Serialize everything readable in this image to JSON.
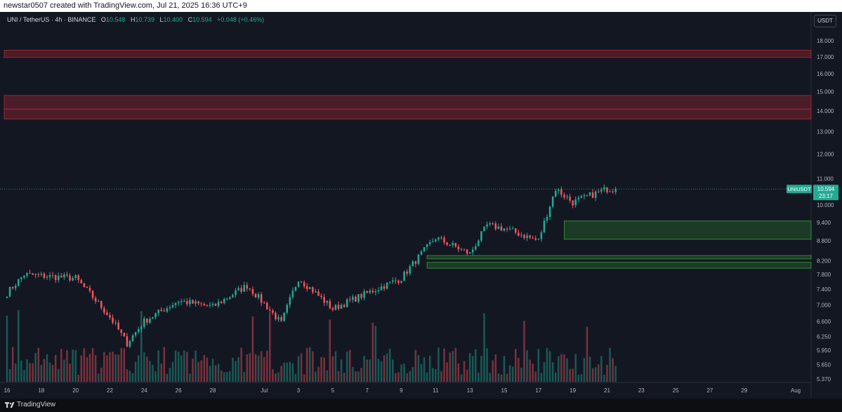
{
  "header": {
    "attribution": "newstar0507 created with TradingView.com, Jul 21, 2025 16:36 UTC+9"
  },
  "legend": {
    "symbol": "UNI / TetherUS · 4h · BINANCE",
    "o_label": "O",
    "o_value": "10.548",
    "h_label": "H",
    "h_value": "10.739",
    "l_label": "L",
    "l_value": "10.400",
    "c_label": "C",
    "c_value": "10.594",
    "change": "+0.048 (+0.46%)"
  },
  "currency_button": "USDT",
  "price_axis": {
    "ticks": [
      "18.000",
      "17.000",
      "16.000",
      "15.000",
      "14.000",
      "13.000",
      "12.000",
      "11.000",
      "10.000",
      "9.400",
      "8.800",
      "8.200",
      "7.800",
      "7.400",
      "7.000",
      "6.600",
      "6.250",
      "5.950",
      "5.650",
      "5.370"
    ]
  },
  "last_price": {
    "symbol_label": "UNIUSDT",
    "price": "10.594",
    "countdown": "23:17"
  },
  "time_axis": {
    "ticks": [
      "16",
      "18",
      "20",
      "22",
      "24",
      "26",
      "28",
      "Jul",
      "3",
      "5",
      "7",
      "9",
      "11",
      "13",
      "15",
      "17",
      "19",
      "21",
      "23",
      "25",
      "27",
      "29",
      "Aug"
    ]
  },
  "footer": {
    "brand": "TradingView",
    "logo_text": "17"
  },
  "colors": {
    "background": "#131722",
    "up": "#22ab94",
    "down": "#f7525f",
    "resistance_zone": "#b22833",
    "support_zone": "#2e7d32",
    "label_bg": "#22ab94"
  },
  "chart_data": {
    "type": "candlestick",
    "title": "UNI / TetherUS · 4h · BINANCE",
    "series_summary": {
      "start_price": 7.3,
      "end_price": 10.594,
      "min_price": 6.1,
      "max_price": 11.0
    },
    "key_points": [
      {
        "date": "Jun 16",
        "price": 7.3
      },
      {
        "date": "Jun 17",
        "price": 7.8
      },
      {
        "date": "Jun 20",
        "price": 7.7
      },
      {
        "date": "Jun 22",
        "price": 6.7
      },
      {
        "date": "Jun 23",
        "price": 6.1
      },
      {
        "date": "Jun 24",
        "price": 6.6
      },
      {
        "date": "Jun 26",
        "price": 7.1
      },
      {
        "date": "Jun 28",
        "price": 6.95
      },
      {
        "date": "Jun 30",
        "price": 7.5
      },
      {
        "date": "Jul 2",
        "price": 6.55
      },
      {
        "date": "Jul 3",
        "price": 7.7
      },
      {
        "date": "Jul 5",
        "price": 6.9
      },
      {
        "date": "Jul 7",
        "price": 7.3
      },
      {
        "date": "Jul 9",
        "price": 7.7
      },
      {
        "date": "Jul 10",
        "price": 8.3
      },
      {
        "date": "Jul 11",
        "price": 8.9
      },
      {
        "date": "Jul 13",
        "price": 8.4
      },
      {
        "date": "Jul 14",
        "price": 9.3
      },
      {
        "date": "Jul 15",
        "price": 9.2
      },
      {
        "date": "Jul 17",
        "price": 8.8
      },
      {
        "date": "Jul 18",
        "price": 10.6
      },
      {
        "date": "Jul 19",
        "price": 10.1
      },
      {
        "date": "Jul 21",
        "price": 10.594
      }
    ],
    "zones": [
      {
        "kind": "resistance",
        "low": 16.95,
        "high": 17.4
      },
      {
        "kind": "resistance",
        "low": 14.1,
        "high": 14.8
      },
      {
        "kind": "resistance",
        "low": 13.6,
        "high": 14.1
      },
      {
        "kind": "support",
        "low": 8.85,
        "high": 9.45
      },
      {
        "kind": "support",
        "low": 8.25,
        "high": 8.35
      },
      {
        "kind": "support",
        "low": 7.98,
        "high": 8.15
      }
    ],
    "xlabel": "",
    "ylabel": "",
    "scale": "log",
    "grid": false
  }
}
